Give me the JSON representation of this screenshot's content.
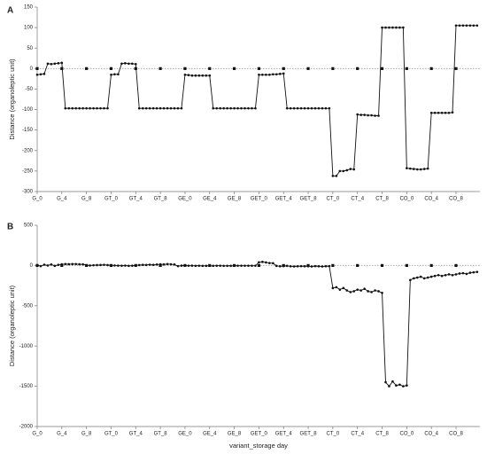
{
  "chart_data": [
    {
      "type": "line",
      "panel": "A",
      "ylabel": "Distance (organoleptic unit)",
      "categories": [
        "G_0",
        null,
        null,
        null,
        null,
        null,
        null,
        "G_4",
        null,
        null,
        null,
        null,
        null,
        null,
        "G_8",
        null,
        null,
        null,
        null,
        null,
        null,
        "GT_0",
        null,
        null,
        null,
        null,
        null,
        null,
        "GT_4",
        null,
        null,
        null,
        null,
        null,
        null,
        "GT_8",
        null,
        null,
        null,
        null,
        null,
        null,
        "GE_0",
        null,
        null,
        null,
        null,
        null,
        null,
        "GE_4",
        null,
        null,
        null,
        null,
        null,
        null,
        "GE_8",
        null,
        null,
        null,
        null,
        null,
        null,
        "GET_0",
        null,
        null,
        null,
        null,
        null,
        null,
        "GET_4",
        null,
        null,
        null,
        null,
        null,
        null,
        "GET_8",
        null,
        null,
        null,
        null,
        null,
        null,
        "CT_0",
        null,
        null,
        null,
        null,
        null,
        null,
        "CT_4",
        null,
        null,
        null,
        null,
        null,
        null,
        "CT_8",
        null,
        null,
        null,
        null,
        null,
        null,
        "CO_0",
        null,
        null,
        null,
        null,
        null,
        null,
        "CO_4",
        null,
        null,
        null,
        null,
        null,
        null,
        "CO_8",
        null,
        null,
        null,
        null,
        null,
        null
      ],
      "ylim": [
        -300,
        150
      ],
      "yticks": [
        -300,
        -250,
        -200,
        -150,
        -100,
        -50,
        0,
        50,
        100,
        150
      ],
      "series": [
        {
          "color": "#111111",
          "values": [
            -15,
            -14,
            -13,
            12,
            11,
            12,
            13,
            14,
            -97,
            -97,
            -97,
            -97,
            -97,
            -97,
            -97,
            -97,
            -97,
            -97,
            -97,
            -97,
            -97,
            -15,
            -14,
            -14,
            12,
            13,
            12,
            12,
            11,
            -97,
            -97,
            -97,
            -97,
            -97,
            -97,
            -97,
            -97,
            -97,
            -97,
            -97,
            -97,
            -97,
            -15,
            -16,
            -17,
            -17,
            -17,
            -17,
            -17,
            -17,
            -97,
            -97,
            -97,
            -97,
            -97,
            -97,
            -97,
            -97,
            -97,
            -97,
            -97,
            -97,
            -97,
            -15,
            -15,
            -15,
            -15,
            -14,
            -14,
            -13,
            -12,
            -97,
            -97,
            -97,
            -97,
            -97,
            -97,
            -97,
            -97,
            -97,
            -97,
            -97,
            -97,
            -97,
            -262,
            -262,
            -250,
            -250,
            -248,
            -245,
            -246,
            -112,
            -113,
            -113,
            -114,
            -114,
            -115,
            -115,
            100,
            100,
            100,
            100,
            100,
            100,
            100,
            -243,
            -244,
            -245,
            -246,
            -246,
            -245,
            -244,
            -108,
            -108,
            -108,
            -108,
            -108,
            -108,
            -107,
            105,
            105,
            105,
            105,
            105,
            105,
            105
          ]
        },
        {
          "color": "#999999",
          "values": [
            0,
            null,
            null,
            null,
            null,
            null,
            null,
            0,
            null,
            null,
            null,
            null,
            null,
            null,
            0,
            null,
            null,
            null,
            null,
            null,
            null,
            0,
            null,
            null,
            null,
            null,
            null,
            null,
            0,
            null,
            null,
            null,
            null,
            null,
            null,
            0,
            null,
            null,
            null,
            null,
            null,
            null,
            0,
            null,
            null,
            null,
            null,
            null,
            null,
            0,
            null,
            null,
            null,
            null,
            null,
            null,
            0,
            null,
            null,
            null,
            null,
            null,
            null,
            0,
            null,
            null,
            null,
            null,
            null,
            null,
            0,
            null,
            null,
            null,
            null,
            null,
            null,
            0,
            null,
            null,
            null,
            null,
            null,
            null,
            0,
            null,
            null,
            null,
            null,
            null,
            null,
            0,
            null,
            null,
            null,
            null,
            null,
            null,
            0,
            null,
            null,
            null,
            null,
            null,
            null,
            0,
            null,
            null,
            null,
            null,
            null,
            null,
            0,
            null,
            null,
            null,
            null,
            null,
            null,
            0,
            null,
            null,
            null,
            null,
            null,
            null
          ]
        }
      ]
    },
    {
      "type": "line",
      "panel": "B",
      "ylabel": "Distance (organoleptic unit)",
      "xlabel": "variant_storage day",
      "categories": [
        "G_0",
        null,
        null,
        null,
        null,
        null,
        null,
        "G_4",
        null,
        null,
        null,
        null,
        null,
        null,
        "G_8",
        null,
        null,
        null,
        null,
        null,
        null,
        "GT_0",
        null,
        null,
        null,
        null,
        null,
        null,
        "GT_4",
        null,
        null,
        null,
        null,
        null,
        null,
        "GT_8",
        null,
        null,
        null,
        null,
        null,
        null,
        "GE_0",
        null,
        null,
        null,
        null,
        null,
        null,
        "GE_4",
        null,
        null,
        null,
        null,
        null,
        null,
        "GE_8",
        null,
        null,
        null,
        null,
        null,
        null,
        "GET_0",
        null,
        null,
        null,
        null,
        null,
        null,
        "GET_4",
        null,
        null,
        null,
        null,
        null,
        null,
        "GET_8",
        null,
        null,
        null,
        null,
        null,
        null,
        "CT_0",
        null,
        null,
        null,
        null,
        null,
        null,
        "CT_4",
        null,
        null,
        null,
        null,
        null,
        null,
        "CT_8",
        null,
        null,
        null,
        null,
        null,
        null,
        "CO_0",
        null,
        null,
        null,
        null,
        null,
        null,
        "CO_4",
        null,
        null,
        null,
        null,
        null,
        null,
        "CO_8",
        null,
        null,
        null,
        null,
        null,
        null
      ],
      "ylim": [
        -2000,
        500
      ],
      "yticks": [
        -2000,
        -1500,
        -1000,
        -500,
        0,
        500
      ],
      "series": [
        {
          "color": "#111111",
          "values": [
            5,
            -8,
            10,
            0,
            12,
            -5,
            8,
            15,
            18,
            16,
            17,
            18,
            15,
            14,
            2,
            0,
            3,
            5,
            6,
            8,
            5,
            2,
            0,
            -2,
            -3,
            -1,
            -5,
            -3,
            3,
            5,
            8,
            6,
            10,
            8,
            12,
            15,
            13,
            17,
            15,
            12,
            -8,
            -2,
            0,
            -3,
            -2,
            -4,
            -3,
            -5,
            -5,
            -4,
            -4,
            -3,
            -3,
            -4,
            -4,
            -4,
            -3,
            -3,
            -3,
            -3,
            -3,
            -3,
            -3,
            40,
            45,
            38,
            30,
            28,
            -5,
            -10,
            -8,
            -5,
            -10,
            -12,
            -10,
            -8,
            -10,
            -10,
            -12,
            -8,
            -10,
            -12,
            -10,
            -8,
            -280,
            -270,
            -300,
            -280,
            -310,
            -330,
            -320,
            -300,
            -310,
            -290,
            -320,
            -330,
            -310,
            -320,
            -340,
            -1450,
            -1500,
            -1440,
            -1490,
            -1480,
            -1500,
            -1490,
            -180,
            -160,
            -150,
            -140,
            -160,
            -150,
            -140,
            -130,
            -120,
            -130,
            -120,
            -110,
            -120,
            -110,
            -100,
            -95,
            -105,
            -90,
            -85,
            -80
          ]
        },
        {
          "color": "#999999",
          "values": [
            0,
            null,
            null,
            null,
            null,
            null,
            null,
            0,
            null,
            null,
            null,
            null,
            null,
            null,
            0,
            null,
            null,
            null,
            null,
            null,
            null,
            0,
            null,
            null,
            null,
            null,
            null,
            null,
            0,
            null,
            null,
            null,
            null,
            null,
            null,
            0,
            null,
            null,
            null,
            null,
            null,
            null,
            0,
            null,
            null,
            null,
            null,
            null,
            null,
            0,
            null,
            null,
            null,
            null,
            null,
            null,
            0,
            null,
            null,
            null,
            null,
            null,
            null,
            0,
            null,
            null,
            null,
            null,
            null,
            null,
            0,
            null,
            null,
            null,
            null,
            null,
            null,
            0,
            null,
            null,
            null,
            null,
            null,
            null,
            0,
            null,
            null,
            null,
            null,
            null,
            null,
            0,
            null,
            null,
            null,
            null,
            null,
            null,
            0,
            null,
            null,
            null,
            null,
            null,
            null,
            0,
            null,
            null,
            null,
            null,
            null,
            null,
            0,
            null,
            null,
            null,
            null,
            null,
            null,
            0,
            null,
            null,
            null,
            null,
            null,
            null
          ]
        }
      ]
    }
  ]
}
